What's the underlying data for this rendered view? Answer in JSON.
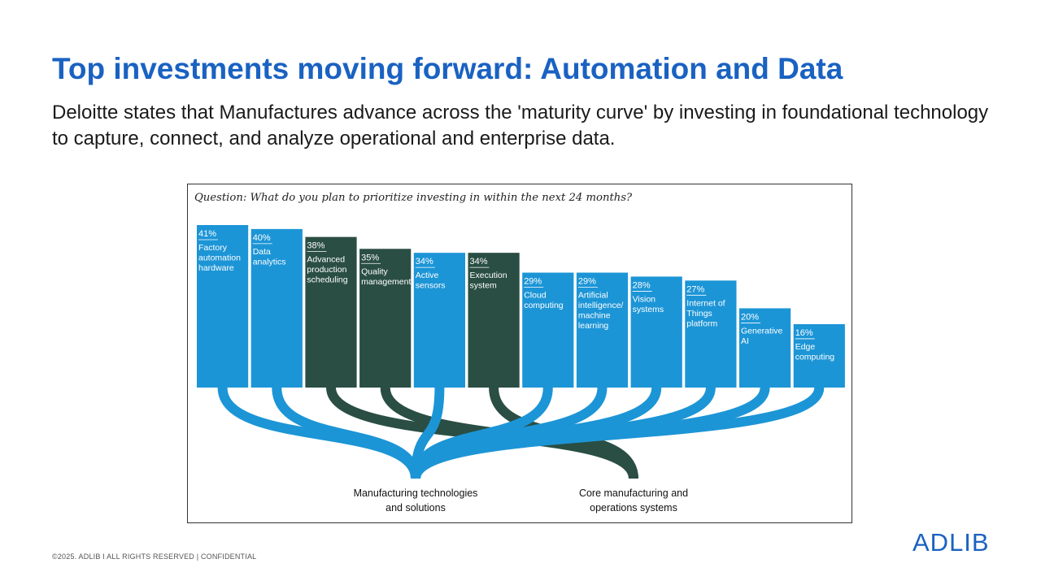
{
  "slide": {
    "title": "Top investments moving forward: Automation and Data",
    "subtitle": "Deloitte states that Manufactures advance across the 'maturity curve' by investing in foundational technology to capture, connect, and analyze operational and enterprise data.",
    "footer": "©2025. ADLIB I ALL RIGHTS RESERVED | CONFIDENTIAL",
    "logo": "ADLIB"
  },
  "colors": {
    "light": "#1c95d6",
    "dark": "#2a4e43",
    "title": "#1a62c2"
  },
  "chart_data": {
    "type": "bar",
    "title": "Question: What do you plan to prioritize investing in within the next 24 months?",
    "ylim": [
      0,
      41
    ],
    "categories": [
      {
        "value": 41,
        "pct": "41%",
        "label": [
          "Factory",
          "automation",
          "hardware"
        ],
        "group": "Manufacturing technologies and solutions"
      },
      {
        "value": 40,
        "pct": "40%",
        "label": [
          "Data",
          "analytics"
        ],
        "group": "Manufacturing technologies and solutions"
      },
      {
        "value": 38,
        "pct": "38%",
        "label": [
          "Advanced",
          "production",
          "scheduling"
        ],
        "group": "Core manufacturing and operations systems"
      },
      {
        "value": 35,
        "pct": "35%",
        "label": [
          "Quality",
          "management"
        ],
        "group": "Core manufacturing and operations systems"
      },
      {
        "value": 34,
        "pct": "34%",
        "label": [
          "Active",
          "sensors"
        ],
        "group": "Manufacturing technologies and solutions"
      },
      {
        "value": 34,
        "pct": "34%",
        "label": [
          "Execution",
          "system"
        ],
        "group": "Core manufacturing and operations systems"
      },
      {
        "value": 29,
        "pct": "29%",
        "label": [
          "Cloud",
          "computing"
        ],
        "group": "Manufacturing technologies and solutions"
      },
      {
        "value": 29,
        "pct": "29%",
        "label": [
          "Artificial",
          "intelligence/",
          "machine",
          "learning"
        ],
        "group": "Manufacturing technologies and solutions"
      },
      {
        "value": 28,
        "pct": "28%",
        "label": [
          "Vision",
          "systems"
        ],
        "group": "Manufacturing technologies and solutions"
      },
      {
        "value": 27,
        "pct": "27%",
        "label": [
          "Internet of",
          "Things",
          "platform"
        ],
        "group": "Manufacturing technologies and solutions"
      },
      {
        "value": 20,
        "pct": "20%",
        "label": [
          "Generative",
          "AI"
        ],
        "group": "Manufacturing technologies and solutions"
      },
      {
        "value": 16,
        "pct": "16%",
        "label": [
          "Edge",
          "computing"
        ],
        "group": "Manufacturing technologies and solutions"
      }
    ],
    "groups": [
      {
        "name": "Manufacturing technologies and solutions",
        "lines": [
          "Manufacturing technologies",
          "and solutions"
        ],
        "color": "light"
      },
      {
        "name": "Core manufacturing and operations systems",
        "lines": [
          "Core manufacturing and",
          "operations systems"
        ],
        "color": "dark"
      }
    ]
  }
}
